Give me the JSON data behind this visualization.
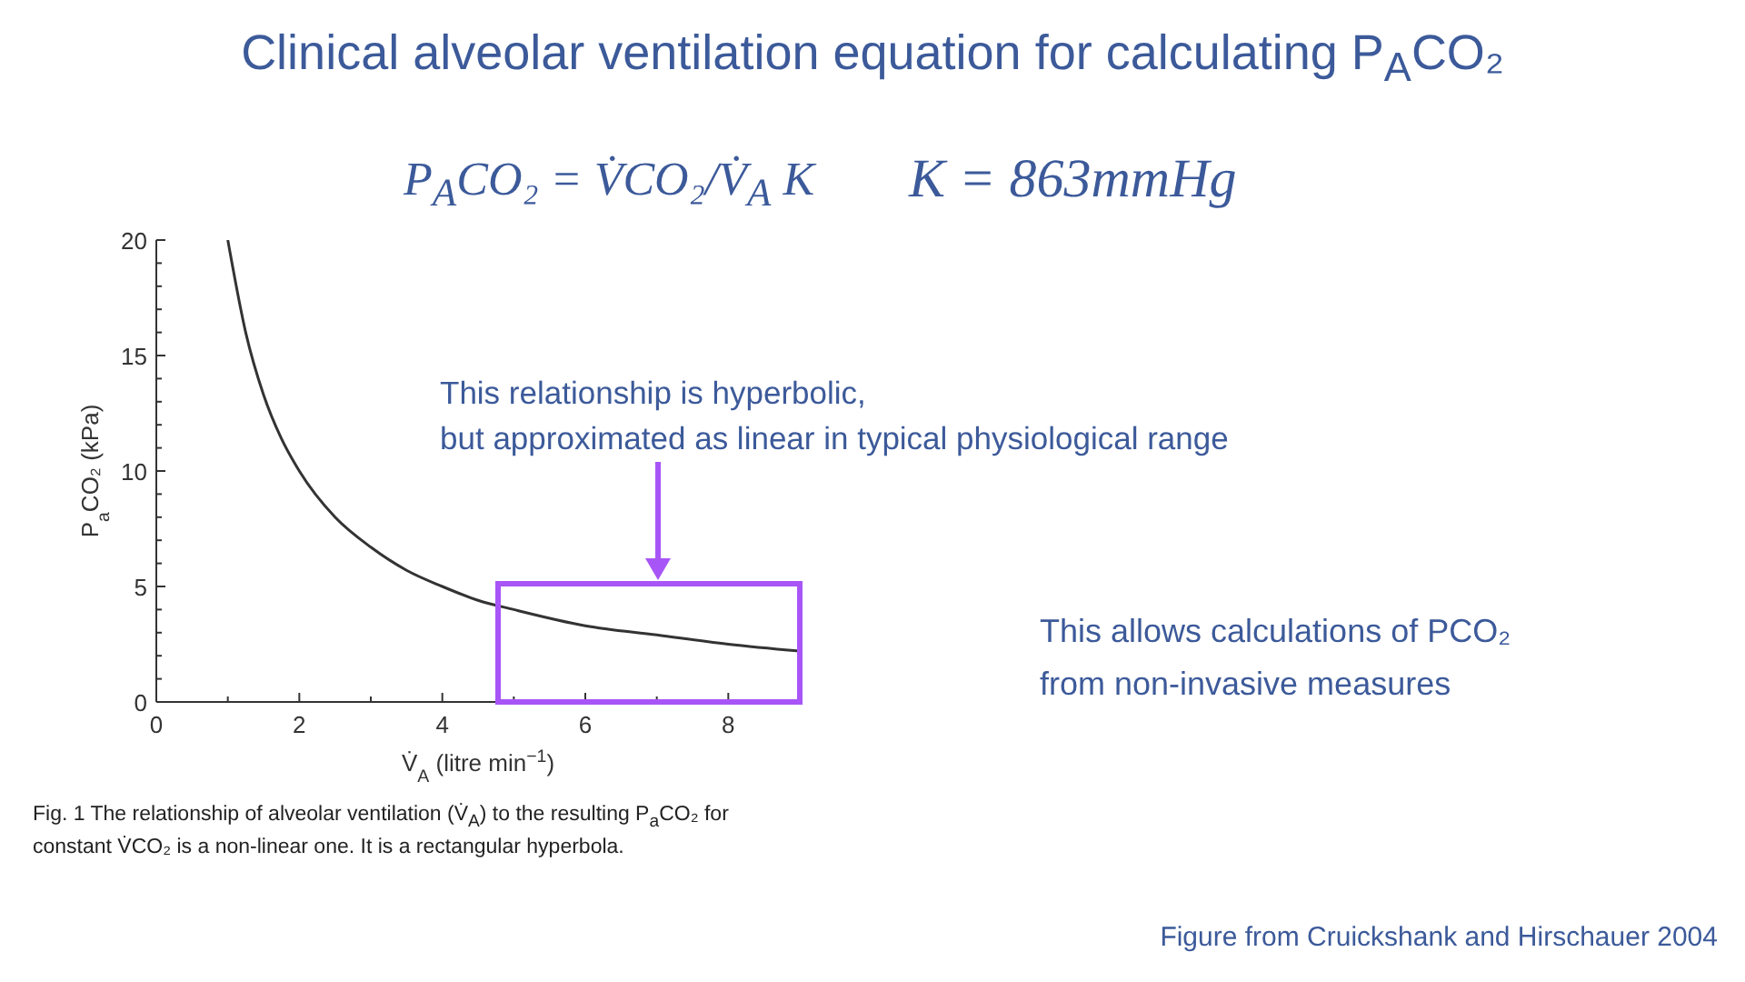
{
  "chart_data": {
    "type": "line",
    "title": "Clinical alveolar ventilation equation for calculating P$_{A}$CO₂",
    "xlabel": "V̇$_{A}$ (litre min$^{−1}$)",
    "ylabel": "P$_{a}$CO₂ (kPa)",
    "x": [
      1,
      1.25,
      1.5,
      1.75,
      2,
      2.5,
      3,
      3.5,
      4,
      4.5,
      5,
      6,
      7,
      8,
      9
    ],
    "series": [
      {
        "color": "#333333",
        "values": [
          20,
          16,
          13.3,
          11.4,
          10,
          8,
          6.7,
          5.7,
          5,
          4.4,
          4,
          3.3,
          2.9,
          2.5,
          2.2
        ]
      }
    ],
    "xlim": [
      0,
      9
    ],
    "xticks": [
      0,
      {
        "value": 1,
        "label": null
      },
      2,
      {
        "value": 3,
        "label": null
      },
      4,
      {
        "value": 5,
        "label": null
      },
      6,
      {
        "value": 7,
        "label": null
      },
      8
    ],
    "ylim": [
      0,
      20
    ],
    "yticks": [
      0,
      {
        "value": 1,
        "label": null
      },
      {
        "value": 2,
        "label": null
      },
      {
        "value": 3,
        "label": null
      },
      {
        "value": 4,
        "label": null
      },
      5,
      {
        "value": 6,
        "label": null
      },
      {
        "value": 7,
        "label": null
      },
      {
        "value": 8,
        "label": null
      },
      {
        "value": 9,
        "label": null
      },
      10,
      {
        "value": 11,
        "label": null
      },
      {
        "value": 12,
        "label": null
      },
      {
        "value": 13,
        "label": null
      },
      {
        "value": 14,
        "label": null
      },
      15,
      {
        "value": 16,
        "label": null
      },
      {
        "value": 17,
        "label": null
      },
      {
        "value": 18,
        "label": null
      },
      {
        "value": 19,
        "label": null
      },
      20
    ],
    "marker": "none",
    "line_style": "solid",
    "annotations": [
      "P$_{A}$CO₂ = V̇CO₂/V̇$_{A}$ K",
      "K = 863mmHg",
      "This relationship is hyperbolic,\nbut approximated as linear in typical physiological range",
      "This allows calculations of PCO₂\nfrom non-invasive measures",
      "Fig. 1 The relationship of alveolar ventilation (V̇$_{A}$) to the resulting P$_{a}$CO₂ for constant V̇CO₂ is a non-linear one. It is a rectangular hyperbola.",
      "Figure from Cruickshank and Hirschauer 2004"
    ]
  }
}
